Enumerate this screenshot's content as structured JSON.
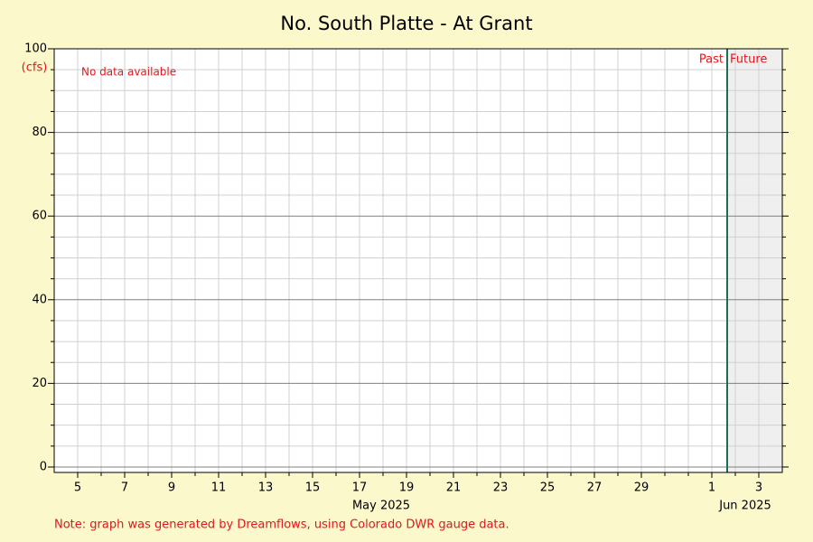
{
  "chart_data": {
    "type": "line",
    "title": "No. South Platte - At Grant",
    "y_unit_label": "(cfs)",
    "message": "No data available",
    "past_label": "Past",
    "future_label": "Future",
    "month_labels": [
      "May 2025",
      "Jun 2025"
    ],
    "note": "Note: graph was generated by Dreamflows, using Colorado DWR gauge data.",
    "x": [],
    "values": [],
    "ylim": [
      -1.3,
      100
    ],
    "yticks": [
      0,
      20,
      40,
      60,
      80,
      100
    ],
    "yminorticks": [
      5,
      10,
      15,
      25,
      30,
      35,
      45,
      50,
      55,
      65,
      70,
      75,
      85,
      90,
      95
    ],
    "xlim": [
      "2025-05-04",
      "2025-06-04"
    ],
    "xticks": [
      {
        "value": "2025-05-05",
        "label": "5"
      },
      {
        "value": "2025-05-07",
        "label": "7"
      },
      {
        "value": "2025-05-09",
        "label": "9"
      },
      {
        "value": "2025-05-11",
        "label": "11"
      },
      {
        "value": "2025-05-13",
        "label": "13"
      },
      {
        "value": "2025-05-15",
        "label": "15"
      },
      {
        "value": "2025-05-17",
        "label": "17"
      },
      {
        "value": "2025-05-19",
        "label": "19"
      },
      {
        "value": "2025-05-21",
        "label": "21"
      },
      {
        "value": "2025-05-23",
        "label": "23"
      },
      {
        "value": "2025-05-25",
        "label": "25"
      },
      {
        "value": "2025-05-27",
        "label": "27"
      },
      {
        "value": "2025-05-29",
        "label": "29"
      },
      {
        "value": "2025-06-01",
        "label": "1"
      },
      {
        "value": "2025-06-03",
        "label": "3"
      }
    ],
    "xminorticks": [
      "2025-05-06",
      "2025-05-08",
      "2025-05-10",
      "2025-05-12",
      "2025-05-14",
      "2025-05-16",
      "2025-05-18",
      "2025-05-20",
      "2025-05-22",
      "2025-05-24",
      "2025-05-26",
      "2025-05-28",
      "2025-05-30",
      "2025-05-31",
      "2025-06-02"
    ],
    "grid": true
  }
}
